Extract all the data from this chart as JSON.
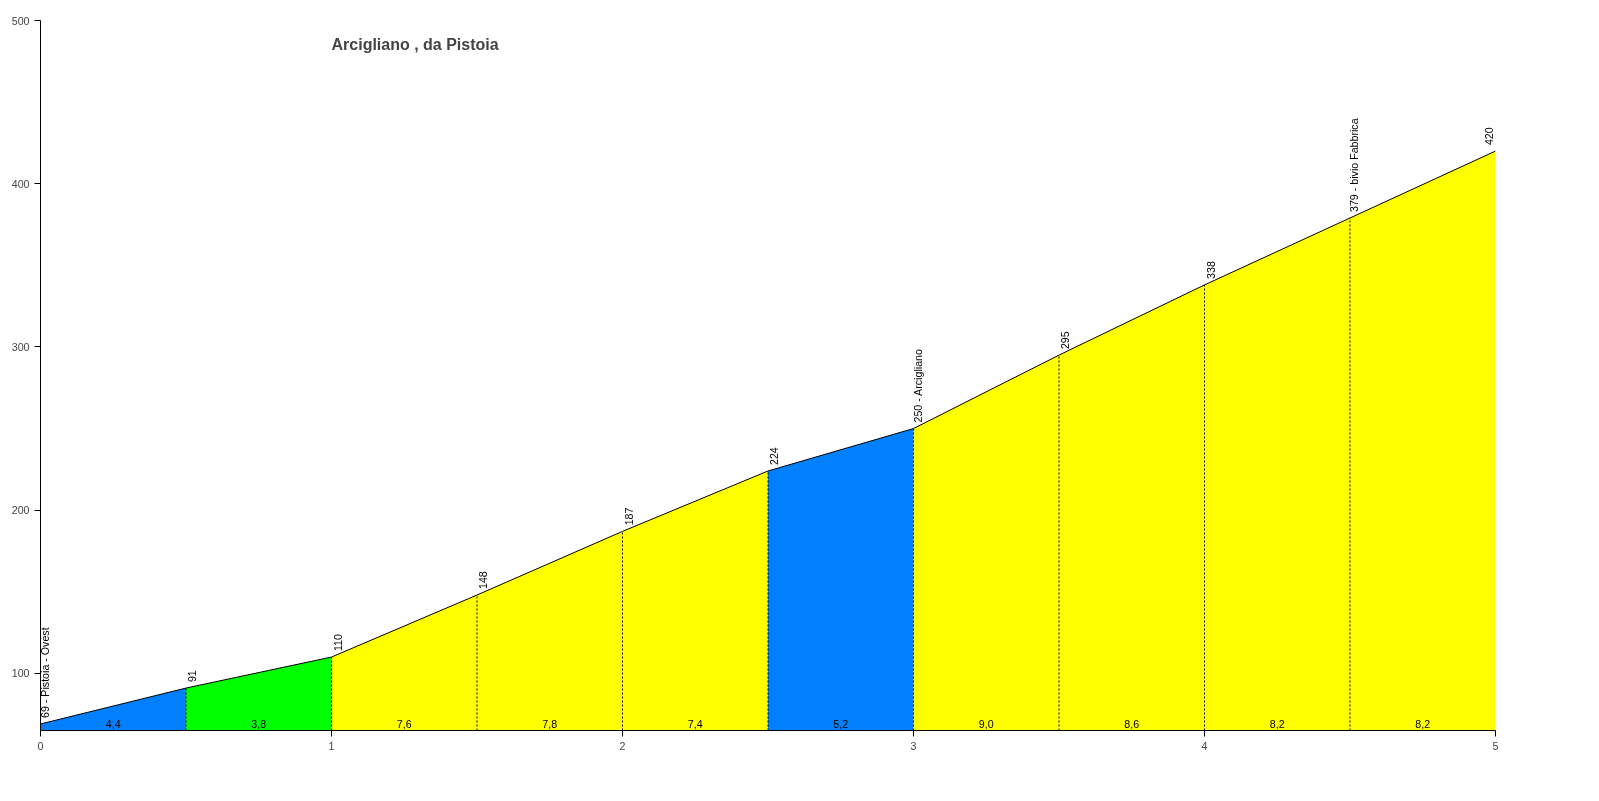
{
  "chart_data": {
    "type": "area",
    "title": "Arcigliano , da Pistoia",
    "series": [
      {
        "color": "#0080ff",
        "x": [
          0,
          0.5
        ],
        "values": [
          69,
          91
        ],
        "value_labels": [
          "69 - Pistoia - Ovest",
          null
        ]
      },
      {
        "color": "#00ff00",
        "x": [
          0.5,
          1
        ],
        "values": [
          91,
          110
        ],
        "value_labels": [
          "91",
          null
        ]
      },
      {
        "color": "#ffff00",
        "x": [
          1,
          1.5
        ],
        "values": [
          110,
          148
        ],
        "value_labels": [
          "110",
          null
        ]
      },
      {
        "color": "#ffff00",
        "x": [
          1.5,
          2
        ],
        "values": [
          148,
          187
        ],
        "value_labels": [
          "148",
          null
        ]
      },
      {
        "color": "#ffff00",
        "x": [
          2,
          2.5
        ],
        "values": [
          187,
          224
        ],
        "value_labels": [
          "187",
          null
        ]
      },
      {
        "color": "#0080ff",
        "x": [
          2.5,
          3
        ],
        "values": [
          224,
          250
        ],
        "value_labels": [
          "224",
          null
        ]
      },
      {
        "color": "#ffff00",
        "x": [
          3,
          3.5
        ],
        "values": [
          250,
          295
        ],
        "value_labels": [
          "250 - Arcigliano",
          null
        ]
      },
      {
        "color": "#ffff00",
        "x": [
          3.5,
          4
        ],
        "values": [
          295,
          338
        ],
        "value_labels": [
          "295",
          null
        ]
      },
      {
        "color": "#ffff00",
        "x": [
          4,
          4.5
        ],
        "values": [
          338,
          379
        ],
        "value_labels": [
          "338",
          null
        ]
      },
      {
        "color": "#ffff00",
        "x": [
          4.5,
          5
        ],
        "values": [
          379,
          420
        ],
        "value_labels": [
          "379 - bivio Fabbrica",
          "420"
        ]
      }
    ],
    "annotations": [
      "4,4",
      "3,8",
      "7,6",
      "7,8",
      "7,4",
      "5,2",
      "9,0",
      "8,6",
      "8,2",
      "8,2"
    ],
    "xlim": [
      0,
      5
    ],
    "ylim": [
      65,
      500
    ],
    "xticks": [
      0,
      1,
      2,
      3,
      4,
      5
    ],
    "yticks": [
      100,
      200,
      300,
      400,
      500
    ],
    "grid": false,
    "line_style": "solid"
  }
}
